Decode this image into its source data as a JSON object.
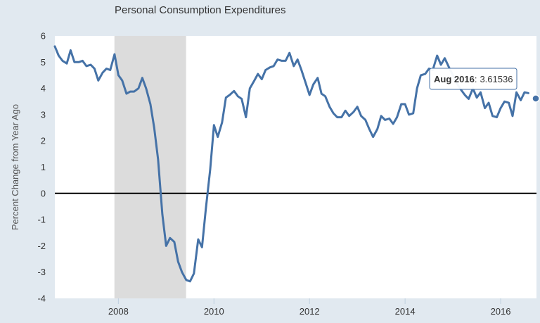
{
  "chart_data": {
    "type": "line",
    "title": "Personal Consumption Expenditures",
    "xlabel": "",
    "ylabel": "Percent Change from Year Ago",
    "xlim": [
      2006.67,
      2016.75
    ],
    "ylim": [
      -4,
      6
    ],
    "y_ticks": [
      "6",
      "5",
      "4",
      "3",
      "2",
      "1",
      "0",
      "-1",
      "-2",
      "-3",
      "-4"
    ],
    "x_ticks": [
      "2008",
      "2010",
      "2012",
      "2014",
      "2016"
    ],
    "grid": false,
    "recession_band": [
      2007.917,
      2009.417
    ],
    "colors": {
      "line": "#4572a7",
      "recession": "#dcdcdc",
      "zero_line": "#000000",
      "plot_background": "#ffffff",
      "page_background": "#e1e9f0"
    },
    "series": [
      {
        "x": [
          2006.67,
          2006.75,
          2006.83,
          2006.92,
          2007.0,
          2007.08,
          2007.17,
          2007.25,
          2007.33,
          2007.42,
          2007.5,
          2007.58,
          2007.67,
          2007.75,
          2007.83,
          2007.92,
          2008.0,
          2008.08,
          2008.17,
          2008.25,
          2008.33,
          2008.42,
          2008.5,
          2008.58,
          2008.67,
          2008.75,
          2008.83,
          2008.92,
          2009.0,
          2009.08,
          2009.17,
          2009.25,
          2009.33,
          2009.42,
          2009.5,
          2009.58,
          2009.67,
          2009.75,
          2009.83,
          2009.92,
          2010.0,
          2010.08,
          2010.17,
          2010.25,
          2010.33,
          2010.42,
          2010.5,
          2010.58,
          2010.67,
          2010.75,
          2010.83,
          2010.92,
          2011.0,
          2011.08,
          2011.17,
          2011.25,
          2011.33,
          2011.42,
          2011.5,
          2011.58,
          2011.67,
          2011.75,
          2011.83,
          2011.92,
          2012.0,
          2012.08,
          2012.17,
          2012.25,
          2012.33,
          2012.42,
          2012.5,
          2012.58,
          2012.67,
          2012.75,
          2012.83,
          2012.92,
          2013.0,
          2013.08,
          2013.17,
          2013.25,
          2013.33,
          2013.42,
          2013.5,
          2013.58,
          2013.67,
          2013.75,
          2013.83,
          2013.92,
          2014.0,
          2014.08,
          2014.17,
          2014.25,
          2014.33,
          2014.42,
          2014.5,
          2014.58,
          2014.67,
          2014.75,
          2014.83,
          2014.92,
          2015.0,
          2015.08,
          2015.17,
          2015.25,
          2015.33,
          2015.42,
          2015.5,
          2015.58,
          2015.67,
          2015.75,
          2015.83,
          2015.92,
          2016.0,
          2016.08,
          2016.17,
          2016.25,
          2016.33,
          2016.42,
          2016.5,
          2016.58
        ],
        "y": [
          5.6,
          5.25,
          5.05,
          4.95,
          5.45,
          5.0,
          5.0,
          5.05,
          4.85,
          4.9,
          4.75,
          4.3,
          4.6,
          4.75,
          4.7,
          5.3,
          4.5,
          4.3,
          3.8,
          3.88,
          3.88,
          4.0,
          4.4,
          4.0,
          3.4,
          2.5,
          1.3,
          -0.8,
          -2.0,
          -1.7,
          -1.85,
          -2.6,
          -3.0,
          -3.3,
          -3.35,
          -3.05,
          -1.75,
          -2.05,
          -0.6,
          0.9,
          2.6,
          2.15,
          2.7,
          3.65,
          3.75,
          3.9,
          3.7,
          3.6,
          2.9,
          4.0,
          4.25,
          4.55,
          4.35,
          4.7,
          4.8,
          4.85,
          5.1,
          5.05,
          5.05,
          5.35,
          4.85,
          5.1,
          4.7,
          4.2,
          3.75,
          4.15,
          4.4,
          3.8,
          3.7,
          3.3,
          3.05,
          2.9,
          2.9,
          3.15,
          2.95,
          3.1,
          3.3,
          2.95,
          2.8,
          2.45,
          2.15,
          2.45,
          2.95,
          2.8,
          2.85,
          2.65,
          2.9,
          3.4,
          3.4,
          3.0,
          3.05,
          4.0,
          4.5,
          4.55,
          4.75,
          4.7,
          5.25,
          4.9,
          5.15,
          4.8,
          4.5,
          4.2,
          3.95,
          3.75,
          3.6,
          4.0,
          3.65,
          3.85,
          3.25,
          3.45,
          2.95,
          2.9,
          3.25,
          3.5,
          3.45,
          2.95,
          3.85,
          3.55,
          3.85,
          3.82
        ]
      }
    ],
    "tooltip": {
      "date": "Aug 2016",
      "sep": ":",
      "value": "3.61536",
      "x": 2016.75,
      "y": 3.61536
    }
  }
}
